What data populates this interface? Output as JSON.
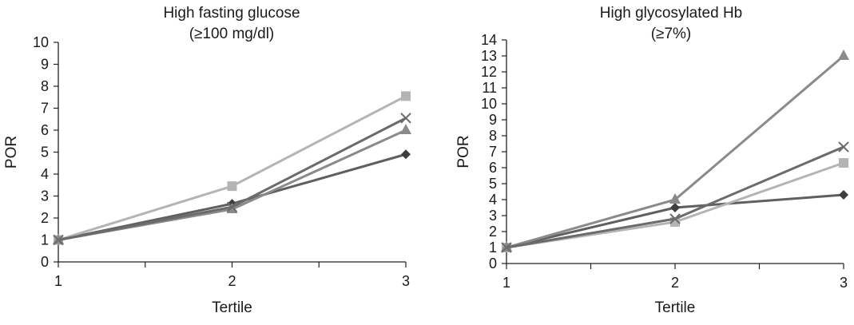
{
  "chart_data": [
    {
      "type": "line",
      "title": "High fasting glucose",
      "subtitle": "(≥100 mg/dl)",
      "xlabel": "Tertile",
      "ylabel": "POR",
      "categories": [
        "1",
        "2",
        "3"
      ],
      "ylim": [
        0,
        10
      ],
      "yticks": [
        "0",
        "1",
        "2",
        "3",
        "4",
        "5",
        "6",
        "7",
        "8",
        "9",
        "10"
      ],
      "grid": false,
      "series": [
        {
          "marker": "diamond",
          "color": "#5f5f5f",
          "values": [
            1,
            2.65,
            4.9
          ]
        },
        {
          "marker": "square",
          "color": "#b4b4b4",
          "values": [
            1,
            3.45,
            7.55
          ]
        },
        {
          "marker": "triangle",
          "color": "#8a8a8a",
          "values": [
            1,
            2.4,
            6.0
          ]
        },
        {
          "marker": "x",
          "color": "#6b6b6b",
          "values": [
            1,
            2.5,
            6.55
          ]
        }
      ]
    },
    {
      "type": "line",
      "title": "High glycosylated Hb",
      "subtitle": "(≥7%)",
      "xlabel": "Tertile",
      "ylabel": "POR",
      "categories": [
        "1",
        "2",
        "3"
      ],
      "ylim": [
        0,
        14
      ],
      "yticks": [
        "0",
        "1",
        "2",
        "3",
        "4",
        "5",
        "6",
        "7",
        "8",
        "9",
        "10",
        "11",
        "12",
        "13",
        "14"
      ],
      "grid": false,
      "series": [
        {
          "marker": "diamond",
          "color": "#5f5f5f",
          "values": [
            1,
            3.5,
            4.3
          ]
        },
        {
          "marker": "square",
          "color": "#b4b4b4",
          "values": [
            1,
            2.6,
            6.3
          ]
        },
        {
          "marker": "triangle",
          "color": "#8a8a8a",
          "values": [
            1,
            4.0,
            13.0
          ]
        },
        {
          "marker": "x",
          "color": "#6b6b6b",
          "values": [
            1,
            2.8,
            7.3
          ]
        }
      ]
    }
  ]
}
